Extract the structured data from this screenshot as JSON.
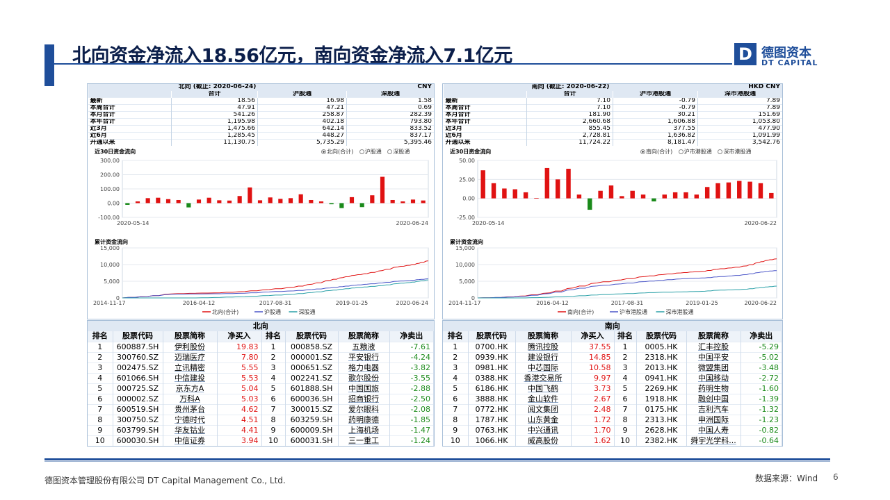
{
  "slide": {
    "title": "北向资金净流入18.56亿元，南向资金净流入7.1亿元",
    "logo": {
      "cn": "德图资本",
      "en": "DT CAPITAL",
      "mark": "D"
    },
    "footer_left": "德图资本管理股份有限公司 DT Capital Management Co., Ltd.",
    "footer_right": "数据来源：Wind",
    "page": "6"
  },
  "colors": {
    "accent": "#1f4e9a",
    "positive": "#e01212",
    "negative": "#1a8a1a",
    "series_total": "#e01212",
    "series_sh": "#4a55c8",
    "series_sz": "#2aa0a8"
  },
  "north": {
    "summary": {
      "caption": "北向 (截止: 2020-06-24)",
      "currency": "CNY",
      "headers": [
        "合计",
        "沪股通",
        "深股通"
      ],
      "rows": [
        {
          "label": "最新",
          "v": [
            "18.56",
            "16.98",
            "1.58"
          ]
        },
        {
          "label": "本周合计",
          "v": [
            "47.91",
            "47.21",
            "0.69"
          ]
        },
        {
          "label": "本月合计",
          "v": [
            "541.26",
            "258.87",
            "282.39"
          ]
        },
        {
          "label": "本年合计",
          "v": [
            "1,195.98",
            "402.18",
            "793.80"
          ]
        },
        {
          "label": "近3月",
          "v": [
            "1,475.66",
            "642.14",
            "833.52"
          ]
        },
        {
          "label": "近6月",
          "v": [
            "1,285.45",
            "448.27",
            "837.17"
          ]
        },
        {
          "label": "开通以来",
          "v": [
            "11,130.75",
            "5,735.29",
            "5,395.46"
          ]
        }
      ]
    },
    "flow_title": "近30日资金流向",
    "flow_legend": [
      "北向(合计)",
      "沪股通",
      "深股通"
    ],
    "cum_title": "累计资金流向",
    "cum_legend": [
      "北向(合计)",
      "沪股通",
      "深股通"
    ],
    "top_caption": "北向",
    "top_headers": [
      "排名",
      "股票代码",
      "股票简称",
      "净买入",
      "排名",
      "股票代码",
      "股票简称",
      "净卖出"
    ],
    "buys": [
      {
        "rank": "1",
        "code": "600887.SH",
        "name": "伊利股份",
        "value": "19.83"
      },
      {
        "rank": "2",
        "code": "300760.SZ",
        "name": "迈瑞医疗",
        "value": "7.80"
      },
      {
        "rank": "3",
        "code": "002475.SZ",
        "name": "立讯精密",
        "value": "5.55"
      },
      {
        "rank": "4",
        "code": "601066.SH",
        "name": "中信建投",
        "value": "5.53"
      },
      {
        "rank": "5",
        "code": "000725.SZ",
        "name": "京东方A",
        "value": "5.04"
      },
      {
        "rank": "6",
        "code": "000002.SZ",
        "name": "万科A",
        "value": "5.03"
      },
      {
        "rank": "7",
        "code": "600519.SH",
        "name": "贵州茅台",
        "value": "4.62"
      },
      {
        "rank": "8",
        "code": "300750.SZ",
        "name": "宁德时代",
        "value": "4.51"
      },
      {
        "rank": "9",
        "code": "603799.SH",
        "name": "华友钴业",
        "value": "4.41"
      },
      {
        "rank": "10",
        "code": "600030.SH",
        "name": "中信证券",
        "value": "3.94"
      }
    ],
    "sells": [
      {
        "rank": "1",
        "code": "000858.SZ",
        "name": "五粮液",
        "value": "-7.61"
      },
      {
        "rank": "2",
        "code": "000001.SZ",
        "name": "平安银行",
        "value": "-4.24"
      },
      {
        "rank": "3",
        "code": "000651.SZ",
        "name": "格力电器",
        "value": "-3.82"
      },
      {
        "rank": "4",
        "code": "002241.SZ",
        "name": "歌尔股份",
        "value": "-3.55"
      },
      {
        "rank": "5",
        "code": "601888.SH",
        "name": "中国国旅",
        "value": "-2.88"
      },
      {
        "rank": "6",
        "code": "600036.SH",
        "name": "招商银行",
        "value": "-2.50"
      },
      {
        "rank": "7",
        "code": "300015.SZ",
        "name": "爱尔眼科",
        "value": "-2.08"
      },
      {
        "rank": "8",
        "code": "603259.SH",
        "name": "药明康德",
        "value": "-1.85"
      },
      {
        "rank": "9",
        "code": "600009.SH",
        "name": "上海机场",
        "value": "-1.47"
      },
      {
        "rank": "10",
        "code": "600031.SH",
        "name": "三一重工",
        "value": "-1.24"
      }
    ]
  },
  "south": {
    "summary": {
      "caption": "南向 (截止: 2020-06-22)",
      "currency": "HKD  CNY",
      "headers": [
        "合计",
        "沪市港股通",
        "深市港股通"
      ],
      "rows": [
        {
          "label": "最新",
          "v": [
            "7.10",
            "-0.79",
            "7.89"
          ]
        },
        {
          "label": "本周合计",
          "v": [
            "7.10",
            "-0.79",
            "7.89"
          ]
        },
        {
          "label": "本月合计",
          "v": [
            "181.90",
            "30.21",
            "151.69"
          ]
        },
        {
          "label": "本年合计",
          "v": [
            "2,660.68",
            "1,606.88",
            "1,053.80"
          ]
        },
        {
          "label": "近3月",
          "v": [
            "855.45",
            "377.55",
            "477.90"
          ]
        },
        {
          "label": "近6月",
          "v": [
            "2,728.81",
            "1,636.82",
            "1,091.99"
          ]
        },
        {
          "label": "开通以来",
          "v": [
            "11,724.22",
            "8,181.47",
            "3,542.76"
          ]
        }
      ]
    },
    "flow_title": "近30日资金流向",
    "flow_legend": [
      "南向(合计)",
      "沪市港股通",
      "深市港股通"
    ],
    "cum_title": "累计资金流向",
    "cum_legend": [
      "南向(合计)",
      "沪市港股通",
      "深市港股通"
    ],
    "top_caption": "南向",
    "top_headers": [
      "排名",
      "股票代码",
      "股票简称",
      "净买入",
      "排名",
      "股票代码",
      "股票简称",
      "净卖出"
    ],
    "buys": [
      {
        "rank": "1",
        "code": "0700.HK",
        "name": "腾讯控股",
        "value": "37.55"
      },
      {
        "rank": "2",
        "code": "0939.HK",
        "name": "建设银行",
        "value": "14.85"
      },
      {
        "rank": "3",
        "code": "0981.HK",
        "name": "中芯国际",
        "value": "10.58"
      },
      {
        "rank": "4",
        "code": "0388.HK",
        "name": "香港交易所",
        "value": "9.97"
      },
      {
        "rank": "5",
        "code": "6186.HK",
        "name": "中国飞鹤",
        "value": "3.73"
      },
      {
        "rank": "6",
        "code": "3888.HK",
        "name": "金山软件",
        "value": "2.67"
      },
      {
        "rank": "7",
        "code": "0772.HK",
        "name": "阅文集团",
        "value": "2.48"
      },
      {
        "rank": "8",
        "code": "1787.HK",
        "name": "山东黄金",
        "value": "1.72"
      },
      {
        "rank": "9",
        "code": "0763.HK",
        "name": "中兴通讯",
        "value": "1.70"
      },
      {
        "rank": "10",
        "code": "1066.HK",
        "name": "威高股份",
        "value": "1.62"
      }
    ],
    "sells": [
      {
        "rank": "1",
        "code": "0005.HK",
        "name": "汇丰控股",
        "value": "-5.29"
      },
      {
        "rank": "2",
        "code": "2318.HK",
        "name": "中国平安",
        "value": "-5.02"
      },
      {
        "rank": "3",
        "code": "2013.HK",
        "name": "微盟集团",
        "value": "-3.48"
      },
      {
        "rank": "4",
        "code": "0941.HK",
        "name": "中国移动",
        "value": "-2.72"
      },
      {
        "rank": "5",
        "code": "2269.HK",
        "name": "药明生物",
        "value": "-1.60"
      },
      {
        "rank": "6",
        "code": "1918.HK",
        "name": "融创中国",
        "value": "-1.39"
      },
      {
        "rank": "7",
        "code": "0175.HK",
        "name": "吉利汽车",
        "value": "-1.32"
      },
      {
        "rank": "8",
        "code": "2313.HK",
        "name": "申洲国际",
        "value": "-1.23"
      },
      {
        "rank": "9",
        "code": "2628.HK",
        "name": "中国人寿",
        "value": "-0.82"
      },
      {
        "rank": "10",
        "code": "2382.HK",
        "name": "舜宇光学科...",
        "value": "-0.64"
      }
    ]
  },
  "chart_data": [
    {
      "id": "north_flow",
      "type": "bar",
      "title": "近30日资金流向",
      "legend": "top-right",
      "ylim": [
        -100,
        300
      ],
      "yticks": [
        "-100.00",
        "0.00",
        "100.00",
        "200.00",
        "300.00"
      ],
      "x_start": "2020-05-14",
      "x_end": "2020-06-24",
      "series": [
        {
          "name": "北向(合计)",
          "values": [
            -12,
            12,
            35,
            38,
            28,
            22,
            -30,
            25,
            38,
            20,
            18,
            50,
            110,
            20,
            40,
            30,
            35,
            62,
            22,
            12,
            -8,
            -35,
            42,
            -28,
            55,
            185,
            22,
            12,
            25,
            18.56
          ]
        }
      ]
    },
    {
      "id": "south_flow",
      "type": "bar",
      "title": "近30日资金流向",
      "legend": "top-right",
      "ylim": [
        -25,
        50
      ],
      "yticks": [
        "-25.00",
        "0.00",
        "25.00",
        "50.00"
      ],
      "x_start": "2020-05-14",
      "x_end": "2020-06-22",
      "series": [
        {
          "name": "南向(合计)",
          "values": [
            37,
            20,
            13,
            12,
            8,
            0.5,
            40,
            25,
            39,
            5,
            -15,
            10,
            17,
            3,
            10,
            5,
            -4,
            5,
            8,
            8,
            5,
            15,
            20,
            21,
            23,
            22,
            20,
            7.1
          ]
        }
      ]
    },
    {
      "id": "north_cum",
      "type": "line",
      "title": "累计资金流向",
      "legend": "bottom",
      "ylim": [
        0,
        15000
      ],
      "yticks": [
        "0",
        "5,000",
        "10,000",
        "15,000"
      ],
      "x_labels": [
        "2014-11-17",
        "2016-04-12",
        "2017-08-31",
        "2019-01-25",
        "2020-06-24"
      ],
      "x": [
        0,
        0.08,
        0.16,
        0.24,
        0.32,
        0.4,
        0.48,
        0.56,
        0.62,
        0.68,
        0.72,
        0.76,
        0.8,
        0.85,
        0.9,
        0.94,
        0.97,
        1
      ],
      "series": [
        {
          "name": "北向(合计)",
          "values": [
            0,
            400,
            1200,
            1400,
            1550,
            1900,
            2500,
            3200,
            4100,
            5300,
            6100,
            6800,
            7300,
            8200,
            9300,
            9800,
            10400,
            11130.75
          ]
        },
        {
          "name": "沪股通",
          "values": [
            0,
            400,
            1100,
            1200,
            1250,
            1400,
            1800,
            2100,
            2500,
            3000,
            3400,
            3800,
            4100,
            4500,
            5000,
            5200,
            5500,
            5735.29
          ]
        },
        {
          "name": "深股通",
          "values": [
            0,
            0,
            0,
            0,
            150,
            400,
            700,
            1100,
            1600,
            2200,
            2600,
            3000,
            3300,
            3700,
            4300,
            4600,
            5000,
            5395.46
          ]
        }
      ]
    },
    {
      "id": "south_cum",
      "type": "line",
      "title": "累计资金流向",
      "legend": "bottom",
      "ylim": [
        0,
        15000
      ],
      "yticks": [
        "0",
        "5,000",
        "10,000",
        "15,000"
      ],
      "x_labels": [
        "2014-11-17",
        "2016-04-12",
        "2017-08-31",
        "2019-01-25",
        "2020-06-22"
      ],
      "x": [
        0,
        0.08,
        0.16,
        0.24,
        0.32,
        0.4,
        0.48,
        0.56,
        0.62,
        0.68,
        0.72,
        0.76,
        0.8,
        0.85,
        0.9,
        0.94,
        0.97,
        1
      ],
      "series": [
        {
          "name": "南向(合计)",
          "values": [
            0,
            150,
            600,
            1500,
            3000,
            4500,
            5400,
            6400,
            7000,
            7500,
            7800,
            8000,
            8600,
            9000,
            9600,
            10600,
            11300,
            11724.22
          ]
        },
        {
          "name": "沪市港股通",
          "values": [
            0,
            150,
            500,
            1300,
            2500,
            3600,
            4200,
            4900,
            5300,
            5700,
            5900,
            6000,
            6300,
            6600,
            7000,
            7600,
            8000,
            8181.47
          ]
        },
        {
          "name": "深市港股通",
          "values": [
            0,
            0,
            0,
            200,
            500,
            900,
            1200,
            1500,
            1700,
            1800,
            1900,
            2000,
            2300,
            2400,
            2600,
            3000,
            3300,
            3542.76
          ]
        }
      ]
    }
  ]
}
